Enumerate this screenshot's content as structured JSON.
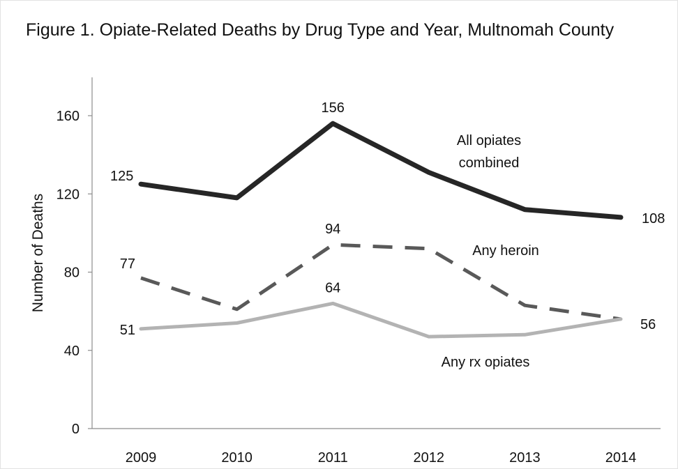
{
  "chart_data": {
    "type": "line",
    "title": "Figure 1. Opiate-Related Deaths by Drug Type and Year, Multnomah County",
    "xlabel": "",
    "ylabel": "Number of Deaths",
    "x": [
      "2009",
      "2010",
      "2011",
      "2012",
      "2013",
      "2014"
    ],
    "ylim": [
      0,
      180
    ],
    "yticks": [
      0,
      40,
      80,
      120,
      160
    ],
    "grid": false,
    "series": [
      {
        "name": "All opiates combined",
        "label_lines": [
          "All opiates",
          "combined"
        ],
        "values": [
          125,
          118,
          156,
          131,
          112,
          108
        ],
        "color": "#262626",
        "style": "solid",
        "labeled_points": [
          {
            "index": 0,
            "text": "125"
          },
          {
            "index": 2,
            "text": "156"
          },
          {
            "index": 5,
            "text": "108"
          }
        ]
      },
      {
        "name": "Any heroin",
        "label_lines": [
          "Any heroin"
        ],
        "values": [
          77,
          61,
          94,
          92,
          63,
          56
        ],
        "color": "#595959",
        "style": "dashed",
        "labeled_points": [
          {
            "index": 0,
            "text": "77"
          },
          {
            "index": 2,
            "text": "94"
          }
        ]
      },
      {
        "name": "Any rx opiates",
        "label_lines": [
          "Any rx opiates"
        ],
        "values": [
          51,
          54,
          64,
          47,
          48,
          56
        ],
        "color": "#b3b3b3",
        "style": "solid",
        "labeled_points": [
          {
            "index": 0,
            "text": "51"
          },
          {
            "index": 2,
            "text": "64"
          },
          {
            "index": 5,
            "text": "56"
          }
        ]
      }
    ]
  }
}
